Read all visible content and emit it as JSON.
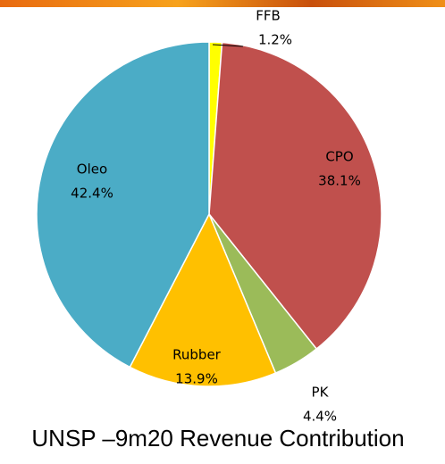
{
  "chart_data": {
    "type": "pie",
    "title": "UNSP –9m20 Revenue Contribution",
    "categories": [
      "FFB",
      "CPO",
      "PK",
      "Rubber",
      "Oleo"
    ],
    "values": [
      1.2,
      38.1,
      4.4,
      13.9,
      42.4
    ],
    "value_labels": [
      "1.2%",
      "38.1%",
      "4.4%",
      "13.9%",
      "42.4%"
    ],
    "colors": [
      "#ffff00",
      "#c0504d",
      "#9bbb59",
      "#ffc000",
      "#4bacc6"
    ]
  }
}
